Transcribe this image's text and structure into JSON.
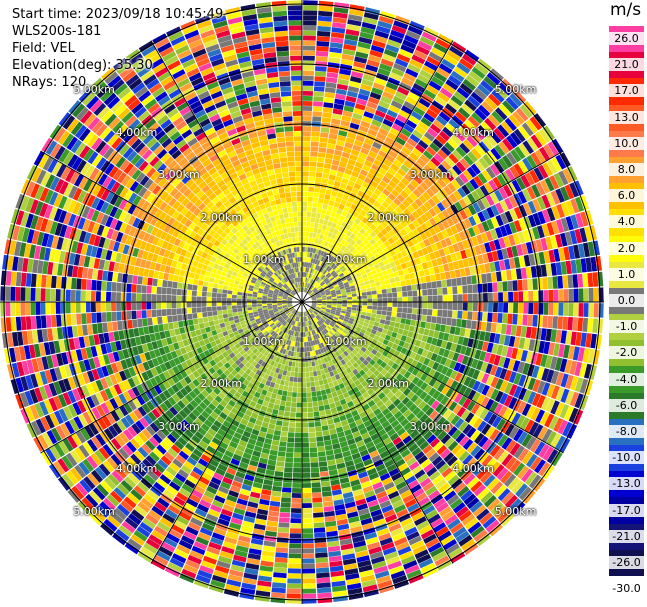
{
  "info": {
    "start_time": "Start time: 2023/09/18 10:45:49",
    "instrument": "WLS200s-181",
    "field": "Field: VEL",
    "elevation": "Elevation(deg): 35.30",
    "nrays": "NRays: 120"
  },
  "colorbar": {
    "title": "m/s",
    "ticks": [
      "26.0",
      "21.0",
      "17.0",
      "13.0",
      "10.0",
      "8.0",
      "6.0",
      "4.0",
      "2.0",
      "1.0",
      "0.0",
      "-1.0",
      "-2.0",
      "-4.0",
      "-6.0",
      "-8.0",
      "-10.0",
      "-13.0",
      "-17.0",
      "-21.0",
      "-26.0",
      "-30.0"
    ],
    "colors": [
      "#ff3ea4",
      "#e8003c",
      "#ff2a00",
      "#ff5a26",
      "#ff7a4a",
      "#ffa030",
      "#ffc000",
      "#ffe000",
      "#fffc0a",
      "#e8e840",
      "#787878",
      "#b0d040",
      "#90c030",
      "#3a9a2a",
      "#2a7a2a",
      "#2a70c0",
      "#1a40e0",
      "#0000d0",
      "#0000a0",
      "#141478",
      "#101050"
    ]
  },
  "ring_labels": {
    "r1": "1.00km",
    "r2": "2.00km",
    "r3": "3.00km",
    "r4": "4.00km",
    "r5": "5.00km"
  }
}
